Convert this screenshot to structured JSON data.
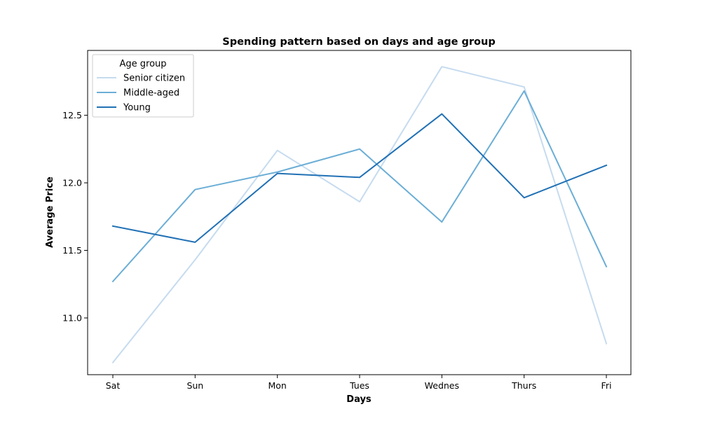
{
  "chart_data": {
    "type": "line",
    "title": "Spending pattern based on days and age group",
    "xlabel": "Days",
    "ylabel": "Average Price",
    "categories": [
      "Sat",
      "Sun",
      "Mon",
      "Tues",
      "Wednes",
      "Thurs",
      "Fri"
    ],
    "ylim": [
      10.58,
      12.98
    ],
    "yticks": [
      11.0,
      11.5,
      12.0,
      12.5
    ],
    "ytick_labels": [
      "11.0",
      "11.5",
      "12.0",
      "12.5"
    ],
    "grid": false,
    "legend": {
      "title": "Age group",
      "position": "top-left"
    },
    "series": [
      {
        "name": "Senior citizen",
        "color": "#c6dbef",
        "values": [
          10.67,
          11.43,
          12.24,
          11.86,
          12.86,
          12.71,
          10.81
        ]
      },
      {
        "name": "Middle-aged",
        "color": "#6baed6",
        "values": [
          11.27,
          11.95,
          12.08,
          12.25,
          11.71,
          12.68,
          11.38
        ]
      },
      {
        "name": "Young",
        "color": "#2171b5",
        "values": [
          11.68,
          11.56,
          12.07,
          12.04,
          12.51,
          11.89,
          12.13
        ]
      }
    ]
  }
}
